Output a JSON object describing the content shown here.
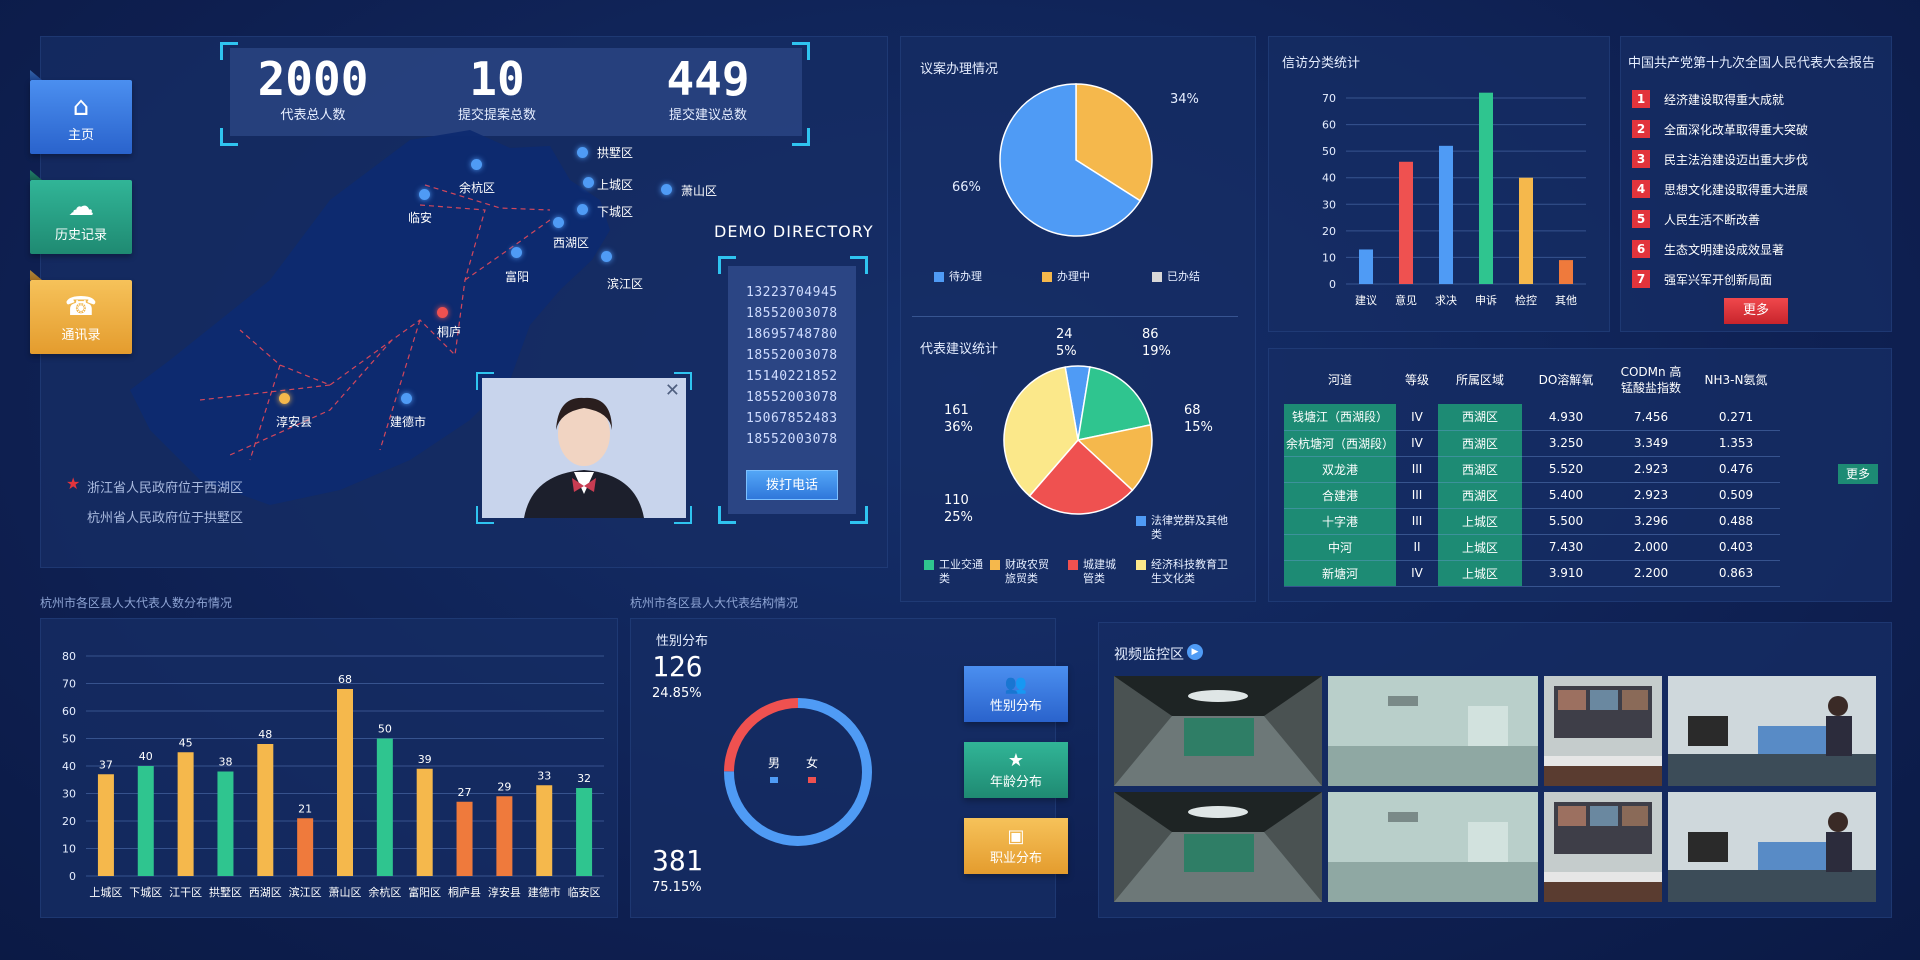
{
  "nav": {
    "home": "主页",
    "history": "历史记录",
    "contacts": "通讯录"
  },
  "stats": [
    {
      "num": "2000",
      "label": "代表总人数"
    },
    {
      "num": "10",
      "label": "提交提案总数"
    },
    {
      "num": "449",
      "label": "提交建议总数"
    }
  ],
  "map": {
    "points": [
      "拱墅区",
      "余杭区",
      "上城区",
      "萧山区",
      "临安",
      "下城区",
      "西湖区",
      "富阳",
      "滨江区",
      "桐庐",
      "淳安县",
      "建德市"
    ],
    "note1": "浙江省人民政府位于西湖区",
    "note2": "杭州省人民政府位于拱墅区"
  },
  "directory": {
    "title": "DEMO DIRECTORY",
    "phones": [
      "13223704945",
      "18552003078",
      "18695748780",
      "18552003078",
      "15140221852",
      "18552003078",
      "15067852483",
      "18552003078"
    ],
    "call": "拨打电话"
  },
  "proposal": {
    "title": "议案办理情况",
    "labels": [
      "34%",
      "66%"
    ],
    "legend": [
      "待办理",
      "办理中",
      "已办结"
    ],
    "colors": [
      "#4f9bf5",
      "#f5b84c",
      "#d8d8d8"
    ]
  },
  "suggest": {
    "title": "代表建议统计",
    "labels": [
      {
        "v": "24",
        "p": "5%"
      },
      {
        "v": "86",
        "p": "19%"
      },
      {
        "v": "68",
        "p": "15%"
      },
      {
        "v": "110",
        "p": "25%"
      },
      {
        "v": "161",
        "p": "36%"
      }
    ],
    "legend": [
      "法律党群及其他类",
      "工业交通类",
      "财政农贸旅贸类",
      "城建城管类",
      "经济科技教育卫生文化类"
    ],
    "colors": [
      "#4f9bf5",
      "#2fc58f",
      "#f5b84c",
      "#ef5150",
      "#fbe88a"
    ]
  },
  "petition": {
    "title": "信访分类统计",
    "yticks": [
      "70",
      "60",
      "50",
      "40",
      "30",
      "20",
      "10",
      "0"
    ]
  },
  "report": {
    "title": "中国共产党第十九次全国人民代表大会报告",
    "items": [
      "经济建设取得重大成就",
      "全面深化改革取得重大突破",
      "民主法治建设迈出重大步伐",
      "思想文化建设取得重大进展",
      "人民生活不断改善",
      "生态文明建设成效显著",
      "强军兴军开创新局面"
    ],
    "more": "更多"
  },
  "river": {
    "headers": [
      "河道",
      "等级",
      "所属区域",
      "DO溶解氧",
      "CODMn 高锰酸盐指数",
      "NH3-N氨氮"
    ],
    "rows": [
      [
        "钱塘江（西湖段）",
        "IV",
        "西湖区",
        "4.930",
        "7.456",
        "0.271"
      ],
      [
        "余杭塘河（西湖段）",
        "IV",
        "西湖区",
        "3.250",
        "3.349",
        "1.353"
      ],
      [
        "双龙港",
        "III",
        "西湖区",
        "5.520",
        "2.923",
        "0.476"
      ],
      [
        "合建港",
        "III",
        "西湖区",
        "5.400",
        "2.923",
        "0.509"
      ],
      [
        "十字港",
        "III",
        "上城区",
        "5.500",
        "3.296",
        "0.488"
      ],
      [
        "中河",
        "II",
        "上城区",
        "7.430",
        "2.000",
        "0.403"
      ],
      [
        "新塘河",
        "IV",
        "上城区",
        "3.910",
        "2.200",
        "0.863"
      ]
    ],
    "more": "更多"
  },
  "dist": {
    "title": "杭州市各区县人大代表人数分布情况",
    "yticks": [
      "80",
      "70",
      "60",
      "50",
      "40",
      "30",
      "20",
      "10",
      "0"
    ]
  },
  "structure": {
    "title": "杭州市各区县人大代表结构情况",
    "gender_title": "性别分布",
    "female_num": "126",
    "female_pct": "24.85%",
    "male_num": "381",
    "male_pct": "75.15%",
    "male": "男",
    "female": "女",
    "buttons": [
      "性别分布",
      "年龄分布",
      "职业分布"
    ]
  },
  "video": {
    "title": "视频监控区"
  },
  "chart_data": [
    {
      "type": "pie",
      "title": "议案办理情况",
      "categories": [
        "待办理",
        "办理中",
        "已办结"
      ],
      "values": [
        66,
        34,
        0
      ]
    },
    {
      "type": "pie",
      "title": "代表建议统计",
      "categories": [
        "法律党群及其他类",
        "工业交通类",
        "财政农贸旅贸类",
        "城建城管类",
        "经济科技教育卫生文化类"
      ],
      "values": [
        24,
        86,
        68,
        110,
        161
      ]
    },
    {
      "type": "bar",
      "title": "信访分类统计",
      "categories": [
        "建议",
        "意见",
        "求决",
        "申诉",
        "检控",
        "其他"
      ],
      "values": [
        13,
        46,
        52,
        72,
        40,
        9
      ],
      "colors": [
        "#4f9bf5",
        "#ef5150",
        "#4f9bf5",
        "#2fc58f",
        "#f5b84c",
        "#ef7a3c"
      ],
      "ylim": [
        0,
        70
      ]
    },
    {
      "type": "bar",
      "title": "杭州市各区县人大代表人数分布情况",
      "categories": [
        "上城区",
        "下城区",
        "江干区",
        "拱墅区",
        "西湖区",
        "滨江区",
        "萧山区",
        "余杭区",
        "富阳区",
        "桐庐县",
        "淳安县",
        "建德市",
        "临安区"
      ],
      "values": [
        37,
        40,
        45,
        38,
        48,
        21,
        68,
        50,
        39,
        27,
        29,
        33,
        32
      ],
      "colors": [
        "#f5b84c",
        "#2fc58f",
        "#f5b84c",
        "#2fc58f",
        "#f5b84c",
        "#ef7a3c",
        "#f5b84c",
        "#2fc58f",
        "#f5b84c",
        "#ef7a3c",
        "#ef7a3c",
        "#f5b84c",
        "#2fc58f"
      ],
      "ylim": [
        0,
        80
      ]
    },
    {
      "type": "pie",
      "title": "性别分布",
      "categories": [
        "男",
        "女"
      ],
      "values": [
        381,
        126
      ],
      "colors": [
        "#4f9bf5",
        "#ef5150"
      ]
    }
  ]
}
